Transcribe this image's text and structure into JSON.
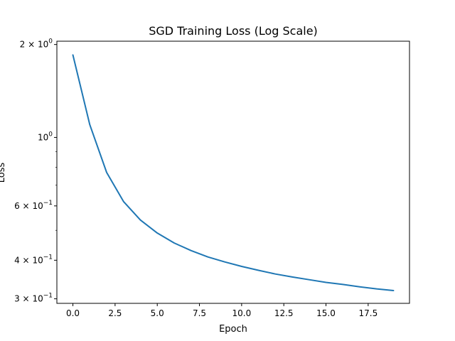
{
  "chart_data": {
    "type": "line",
    "title": "SGD Training Loss (Log Scale)",
    "xlabel": "Epoch",
    "ylabel": "Loss",
    "xlim": [
      -0.95,
      19.95
    ],
    "ylim": [
      0.29,
      2.05
    ],
    "yscale": "log",
    "grid": false,
    "x_ticks": [
      {
        "value": 0,
        "label": "0.0"
      },
      {
        "value": 2.5,
        "label": "2.5"
      },
      {
        "value": 5,
        "label": "5.0"
      },
      {
        "value": 7.5,
        "label": "7.5"
      },
      {
        "value": 10,
        "label": "10.0"
      },
      {
        "value": 12.5,
        "label": "12.5"
      },
      {
        "value": 15,
        "label": "15.0"
      },
      {
        "value": 17.5,
        "label": "17.5"
      }
    ],
    "y_ticks": [
      {
        "value": 2,
        "mantissa": "2",
        "base": "10",
        "exp": "0"
      },
      {
        "value": 1,
        "mantissa": "",
        "base": "10",
        "exp": "0"
      },
      {
        "value": 0.6,
        "mantissa": "6",
        "base": "10",
        "exp": "−1"
      },
      {
        "value": 0.4,
        "mantissa": "4",
        "base": "10",
        "exp": "−1"
      },
      {
        "value": 0.3,
        "mantissa": "3",
        "base": "10",
        "exp": "−1"
      }
    ],
    "y_minor_ticks": [
      0.5,
      0.7,
      0.8,
      0.9
    ],
    "series": [
      {
        "color": "#1f77b4",
        "x": [
          0,
          1,
          2,
          3,
          4,
          5,
          6,
          7,
          8,
          9,
          10,
          11,
          12,
          13,
          14,
          15,
          16,
          17,
          18,
          19
        ],
        "y": [
          1.85,
          1.1,
          0.77,
          0.62,
          0.54,
          0.49,
          0.455,
          0.43,
          0.41,
          0.395,
          0.382,
          0.371,
          0.361,
          0.353,
          0.346,
          0.339,
          0.334,
          0.328,
          0.323,
          0.319
        ]
      }
    ]
  }
}
